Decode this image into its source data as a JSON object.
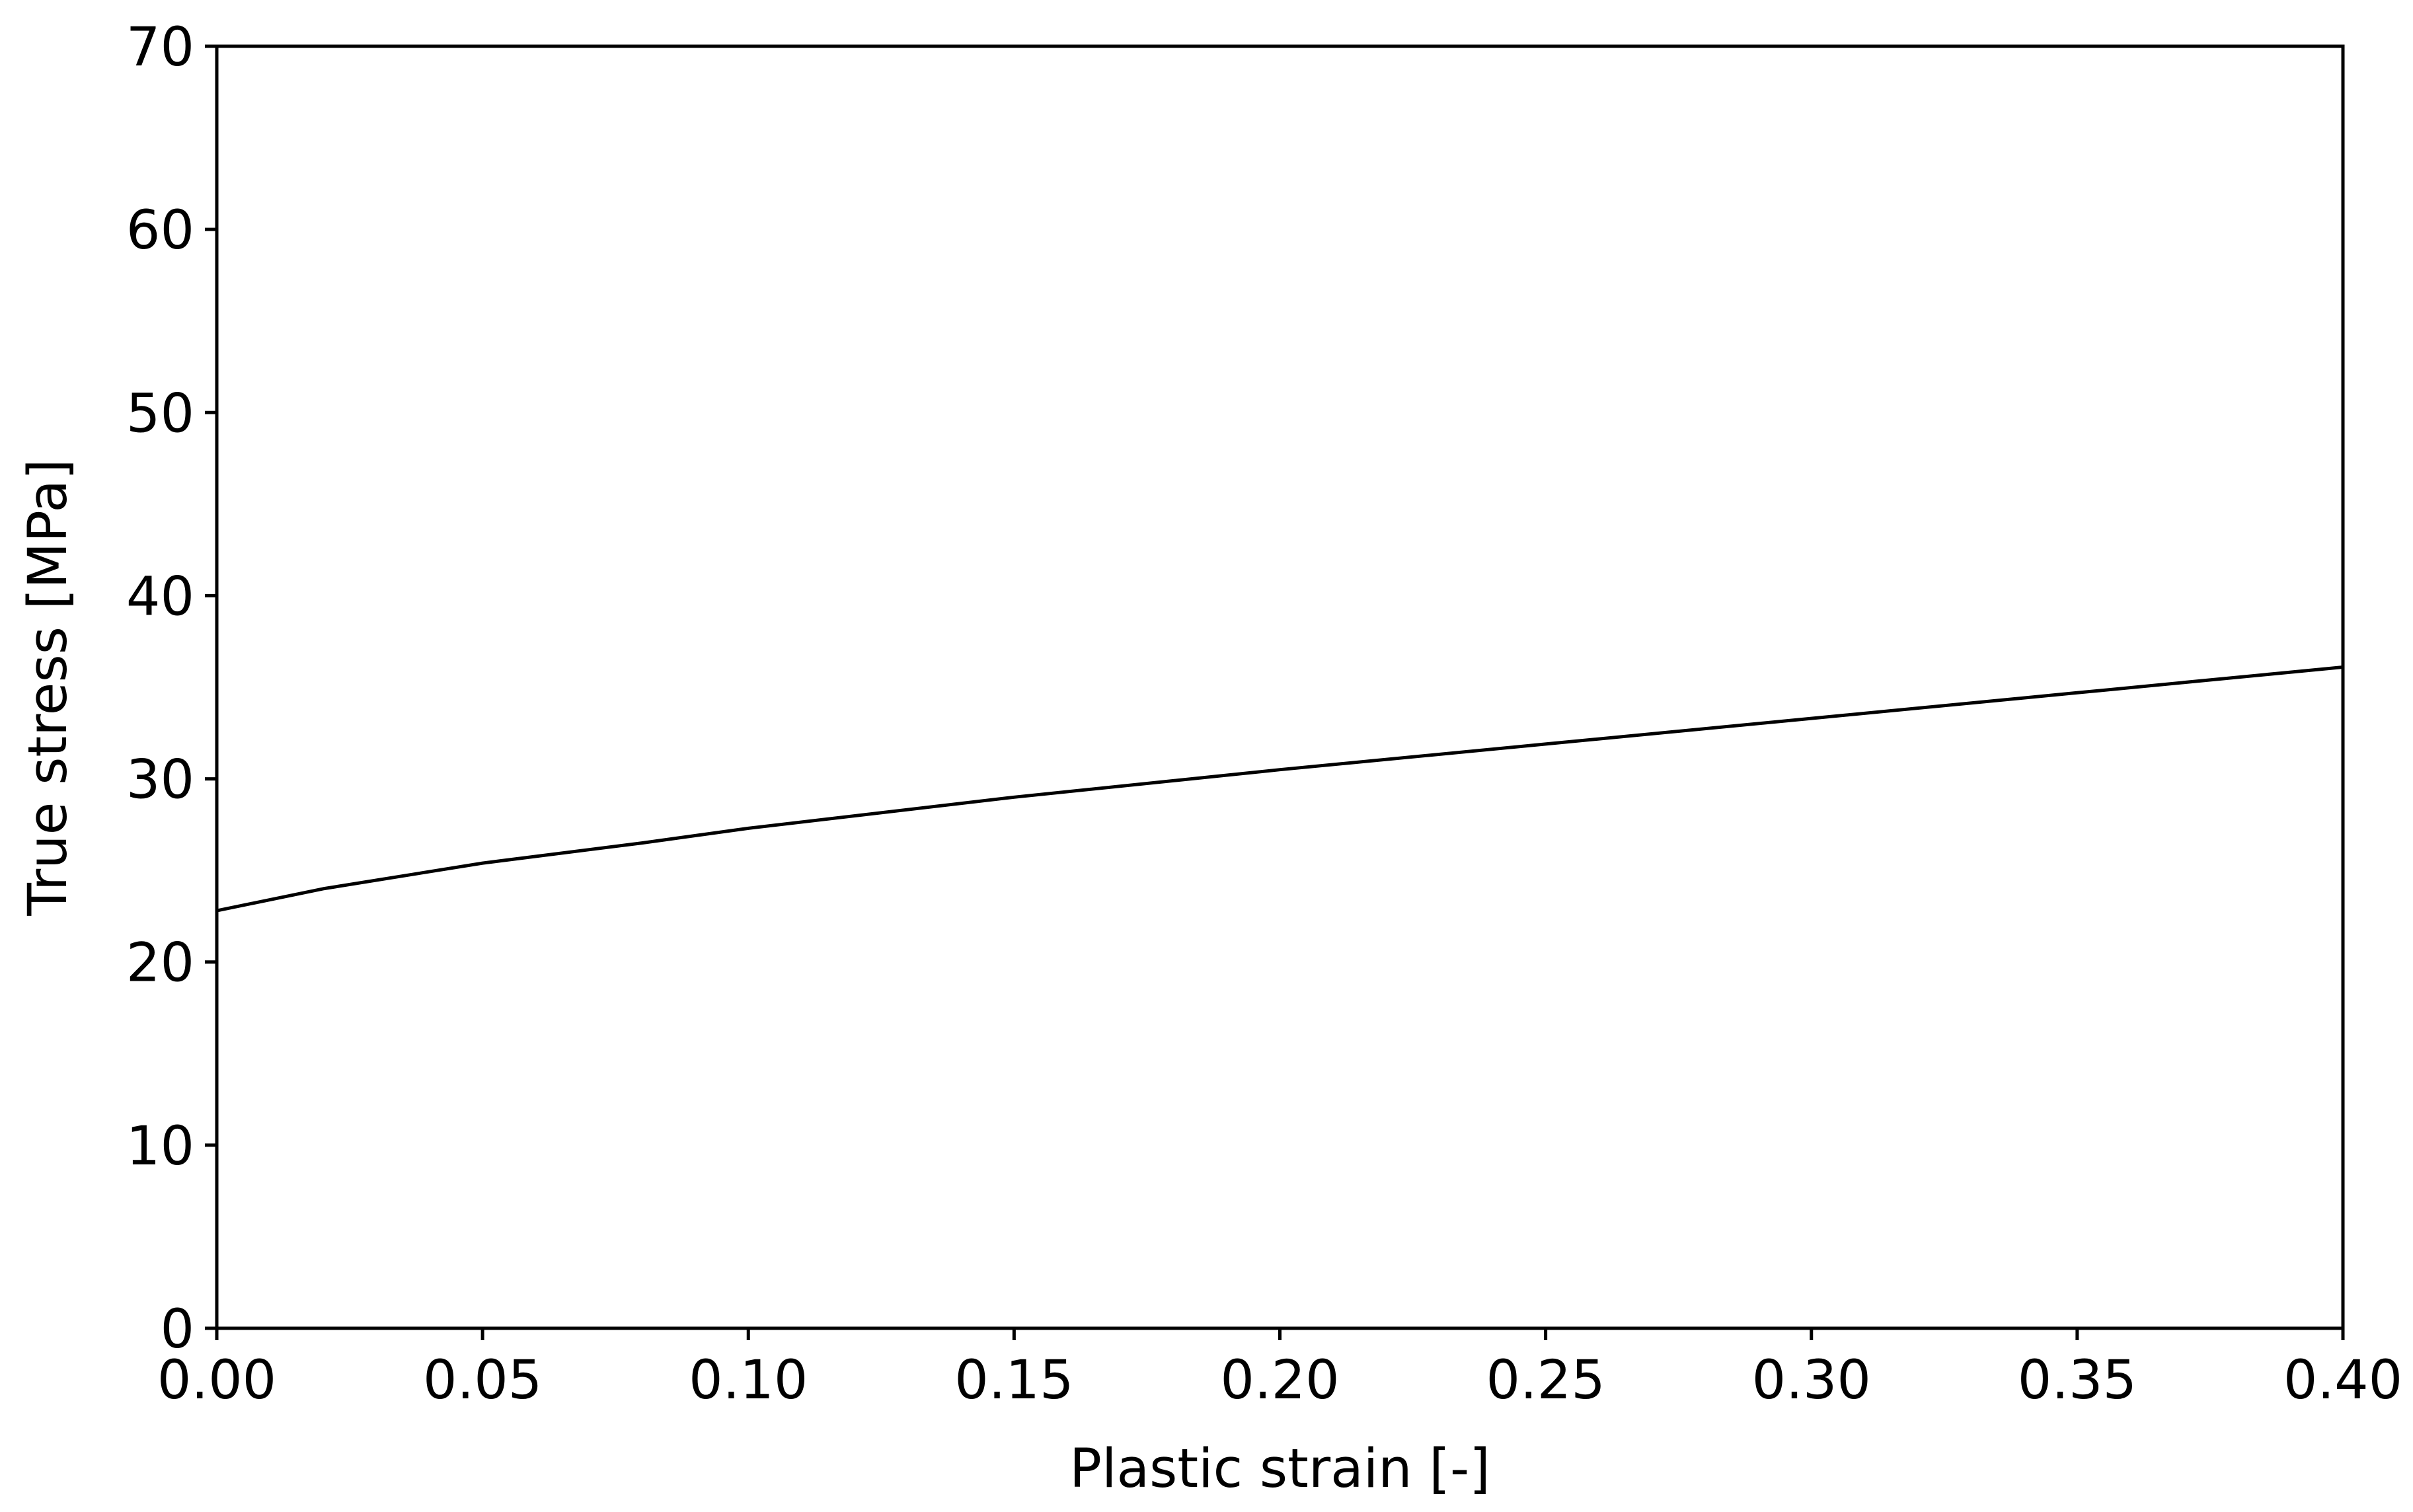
{
  "chart_data": {
    "type": "line",
    "title": "",
    "xlabel": "Plastic strain [-]",
    "ylabel": "True stress [MPa]",
    "xlim": [
      0.0,
      0.4
    ],
    "ylim": [
      0,
      70
    ],
    "xticks": [
      "0.00",
      "0.05",
      "0.10",
      "0.15",
      "0.20",
      "0.25",
      "0.30",
      "0.35",
      "0.40"
    ],
    "yticks": [
      "0",
      "10",
      "20",
      "30",
      "40",
      "50",
      "60",
      "70"
    ],
    "grid": false,
    "legend": "none",
    "line_color": "#000000",
    "series": [
      {
        "x": [
          0.0,
          0.02,
          0.05,
          0.08,
          0.1,
          0.15,
          0.2,
          0.25,
          0.3,
          0.35,
          0.4
        ],
        "y": [
          22.8,
          24.0,
          25.4,
          26.5,
          27.3,
          29.0,
          30.5,
          31.9,
          33.3,
          34.7,
          36.1
        ]
      }
    ]
  }
}
